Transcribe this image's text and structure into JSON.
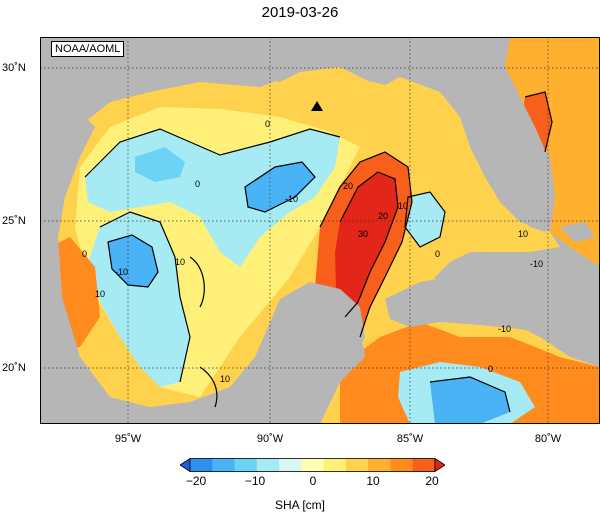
{
  "title": "2019-03-26",
  "credit": "NOAA/AOML",
  "x_ticks": [
    "95˚W",
    "90˚W",
    "85˚W",
    "80˚W"
  ],
  "y_ticks": [
    "30˚N",
    "25˚N",
    "20˚N"
  ],
  "contour_labels": [
    "0",
    "0",
    "-10",
    "-10",
    "10",
    "20",
    "30",
    "20",
    "10",
    "0",
    "10",
    "-10",
    "0",
    "-10",
    "10",
    "0",
    "10"
  ],
  "colorbar": {
    "ticks": [
      "−20",
      "−10",
      "0",
      "10",
      "20"
    ],
    "label": "SHA [cm]",
    "colors": [
      "#1a5fe6",
      "#2f8ff0",
      "#4ab3f5",
      "#6dd3f4",
      "#a6eaf4",
      "#d9f7f4",
      "#ffffb3",
      "#fff07a",
      "#ffd24d",
      "#ffb02e",
      "#ff8a1e",
      "#f85f1a",
      "#e3261a"
    ]
  },
  "colors": {
    "land": "#b6b6b6",
    "ocean_missing": "#ffffff"
  },
  "marker": "triangle-marker"
}
